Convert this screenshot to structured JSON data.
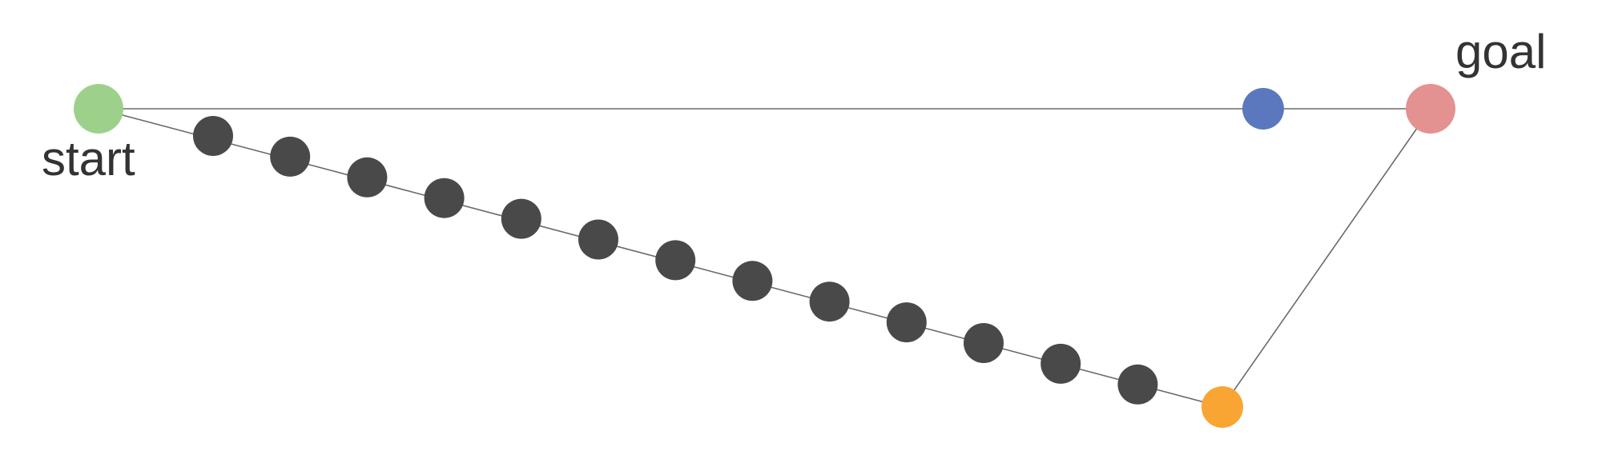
{
  "labels": {
    "start": "start",
    "goal": "goal"
  },
  "colors": {
    "start": "#9dd18b",
    "goal": "#e39191",
    "direct_waypoint": "#5b78be",
    "detour_turn": "#f9a533",
    "chain_node": "#4a4949",
    "edge": "#6b6b6b"
  },
  "paths": {
    "direct": {
      "waypoints": 1
    },
    "detour": {
      "chain_nodes": 13,
      "turn_nodes": 1
    }
  }
}
